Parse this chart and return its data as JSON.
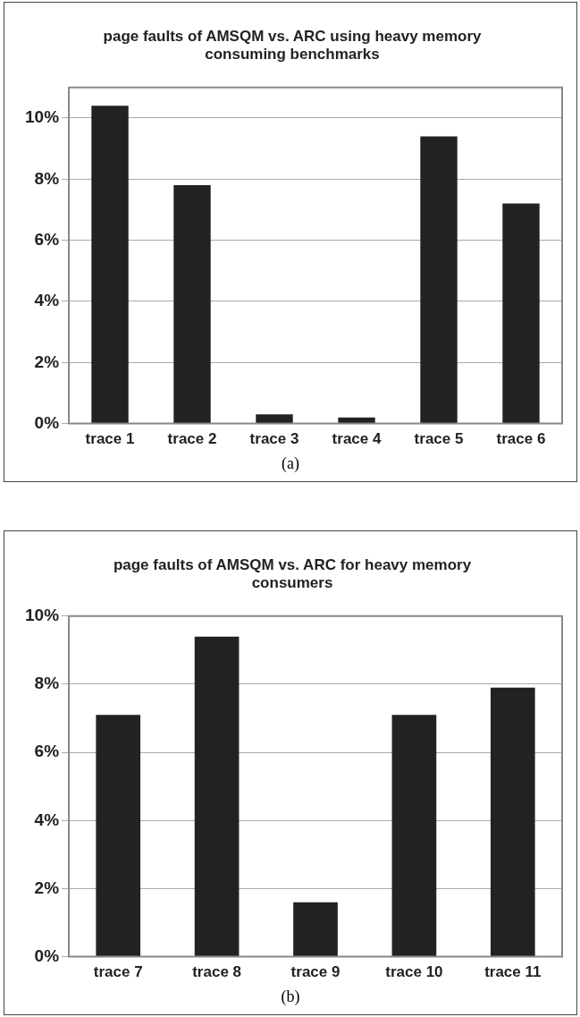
{
  "chart_data": [
    {
      "type": "bar",
      "title": "page faults of AMSQM vs. ARC using heavy memory consuming benchmarks",
      "categories": [
        "trace 1",
        "trace 2",
        "trace 3",
        "trace 4",
        "trace 5",
        "trace 6"
      ],
      "values": [
        10.4,
        7.8,
        0.3,
        0.2,
        9.4,
        7.2
      ],
      "color": "#222222",
      "ylim": [
        0,
        11
      ],
      "yticks": [
        {
          "value": 0,
          "label": "0%"
        },
        {
          "value": 2,
          "label": "2%"
        },
        {
          "value": 4,
          "label": "4%"
        },
        {
          "value": 6,
          "label": "6%"
        },
        {
          "value": 8,
          "label": "8%"
        },
        {
          "value": 10,
          "label": "10%"
        }
      ],
      "grid": "y",
      "legend": false,
      "annotations": [
        "(a)"
      ]
    },
    {
      "type": "bar",
      "title": "page faults of AMSQM vs. ARC for heavy memory consumers",
      "categories": [
        "trace 7",
        "trace 8",
        "trace 9",
        "trace 10",
        "trace 11"
      ],
      "values": [
        7.1,
        9.4,
        1.6,
        7.1,
        7.9
      ],
      "color": "#222222",
      "ylim": [
        0,
        10
      ],
      "yticks": [
        {
          "value": 0,
          "label": "0%"
        },
        {
          "value": 2,
          "label": "2%"
        },
        {
          "value": 4,
          "label": "4%"
        },
        {
          "value": 6,
          "label": "6%"
        },
        {
          "value": 8,
          "label": "8%"
        },
        {
          "value": 10,
          "label": "10%"
        }
      ],
      "grid": "y",
      "legend": false,
      "annotations": [
        "(b)"
      ]
    }
  ]
}
